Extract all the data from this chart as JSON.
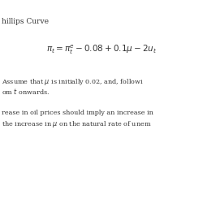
{
  "background_color": "#ffffff",
  "title_text": "hillips Curve",
  "equation": "$\\pi_t = \\pi_t^e - 0.08 + 0.1\\mu - 2u_t$",
  "line1": "Assume that $\\mu$ is initially 0.02, and, followi",
  "line2": "om $t$ onwards.",
  "line3": "rease in oil prices should imply an increase in",
  "line4": "the increase in $\\mu$ on the natural rate of unem",
  "text_color": "#333333",
  "font_size_title": 6.5,
  "font_size_eq": 7.5,
  "font_size_body": 5.8
}
